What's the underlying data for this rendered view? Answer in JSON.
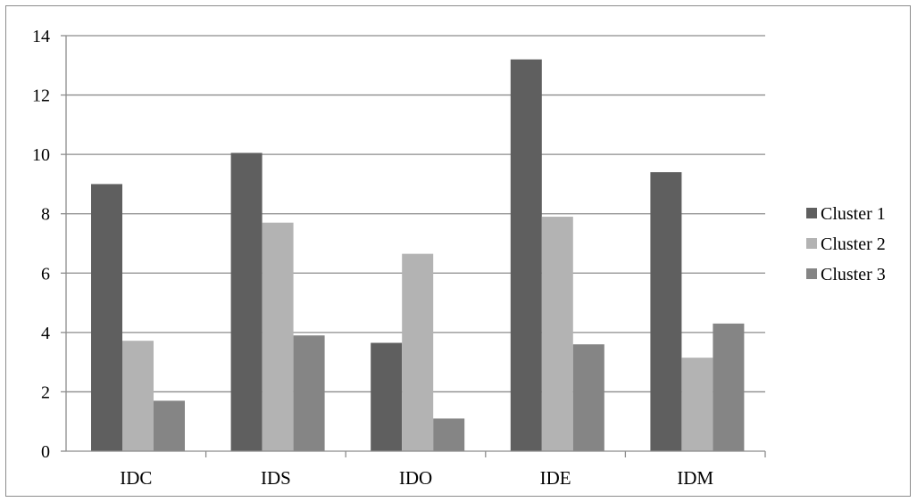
{
  "chart_data": {
    "type": "bar",
    "title": "",
    "xlabel": "",
    "ylabel": "",
    "categories": [
      "IDC",
      "IDS",
      "IDO",
      "IDE",
      "IDM"
    ],
    "series": [
      {
        "name": "Cluster 1",
        "color": "#5f5f5f",
        "values": [
          9.0,
          10.05,
          3.65,
          13.2,
          9.4
        ]
      },
      {
        "name": "Cluster 2",
        "color": "#b3b3b3",
        "values": [
          3.72,
          7.7,
          6.65,
          7.9,
          3.15
        ]
      },
      {
        "name": "Cluster 3",
        "color": "#858585",
        "values": [
          1.7,
          3.9,
          1.1,
          3.6,
          4.3
        ]
      }
    ],
    "ylim": [
      0,
      14
    ],
    "yticks": [
      "0",
      "2",
      "4",
      "6",
      "8",
      "10",
      "12",
      "14"
    ],
    "grid": true,
    "legend_position": "right"
  }
}
